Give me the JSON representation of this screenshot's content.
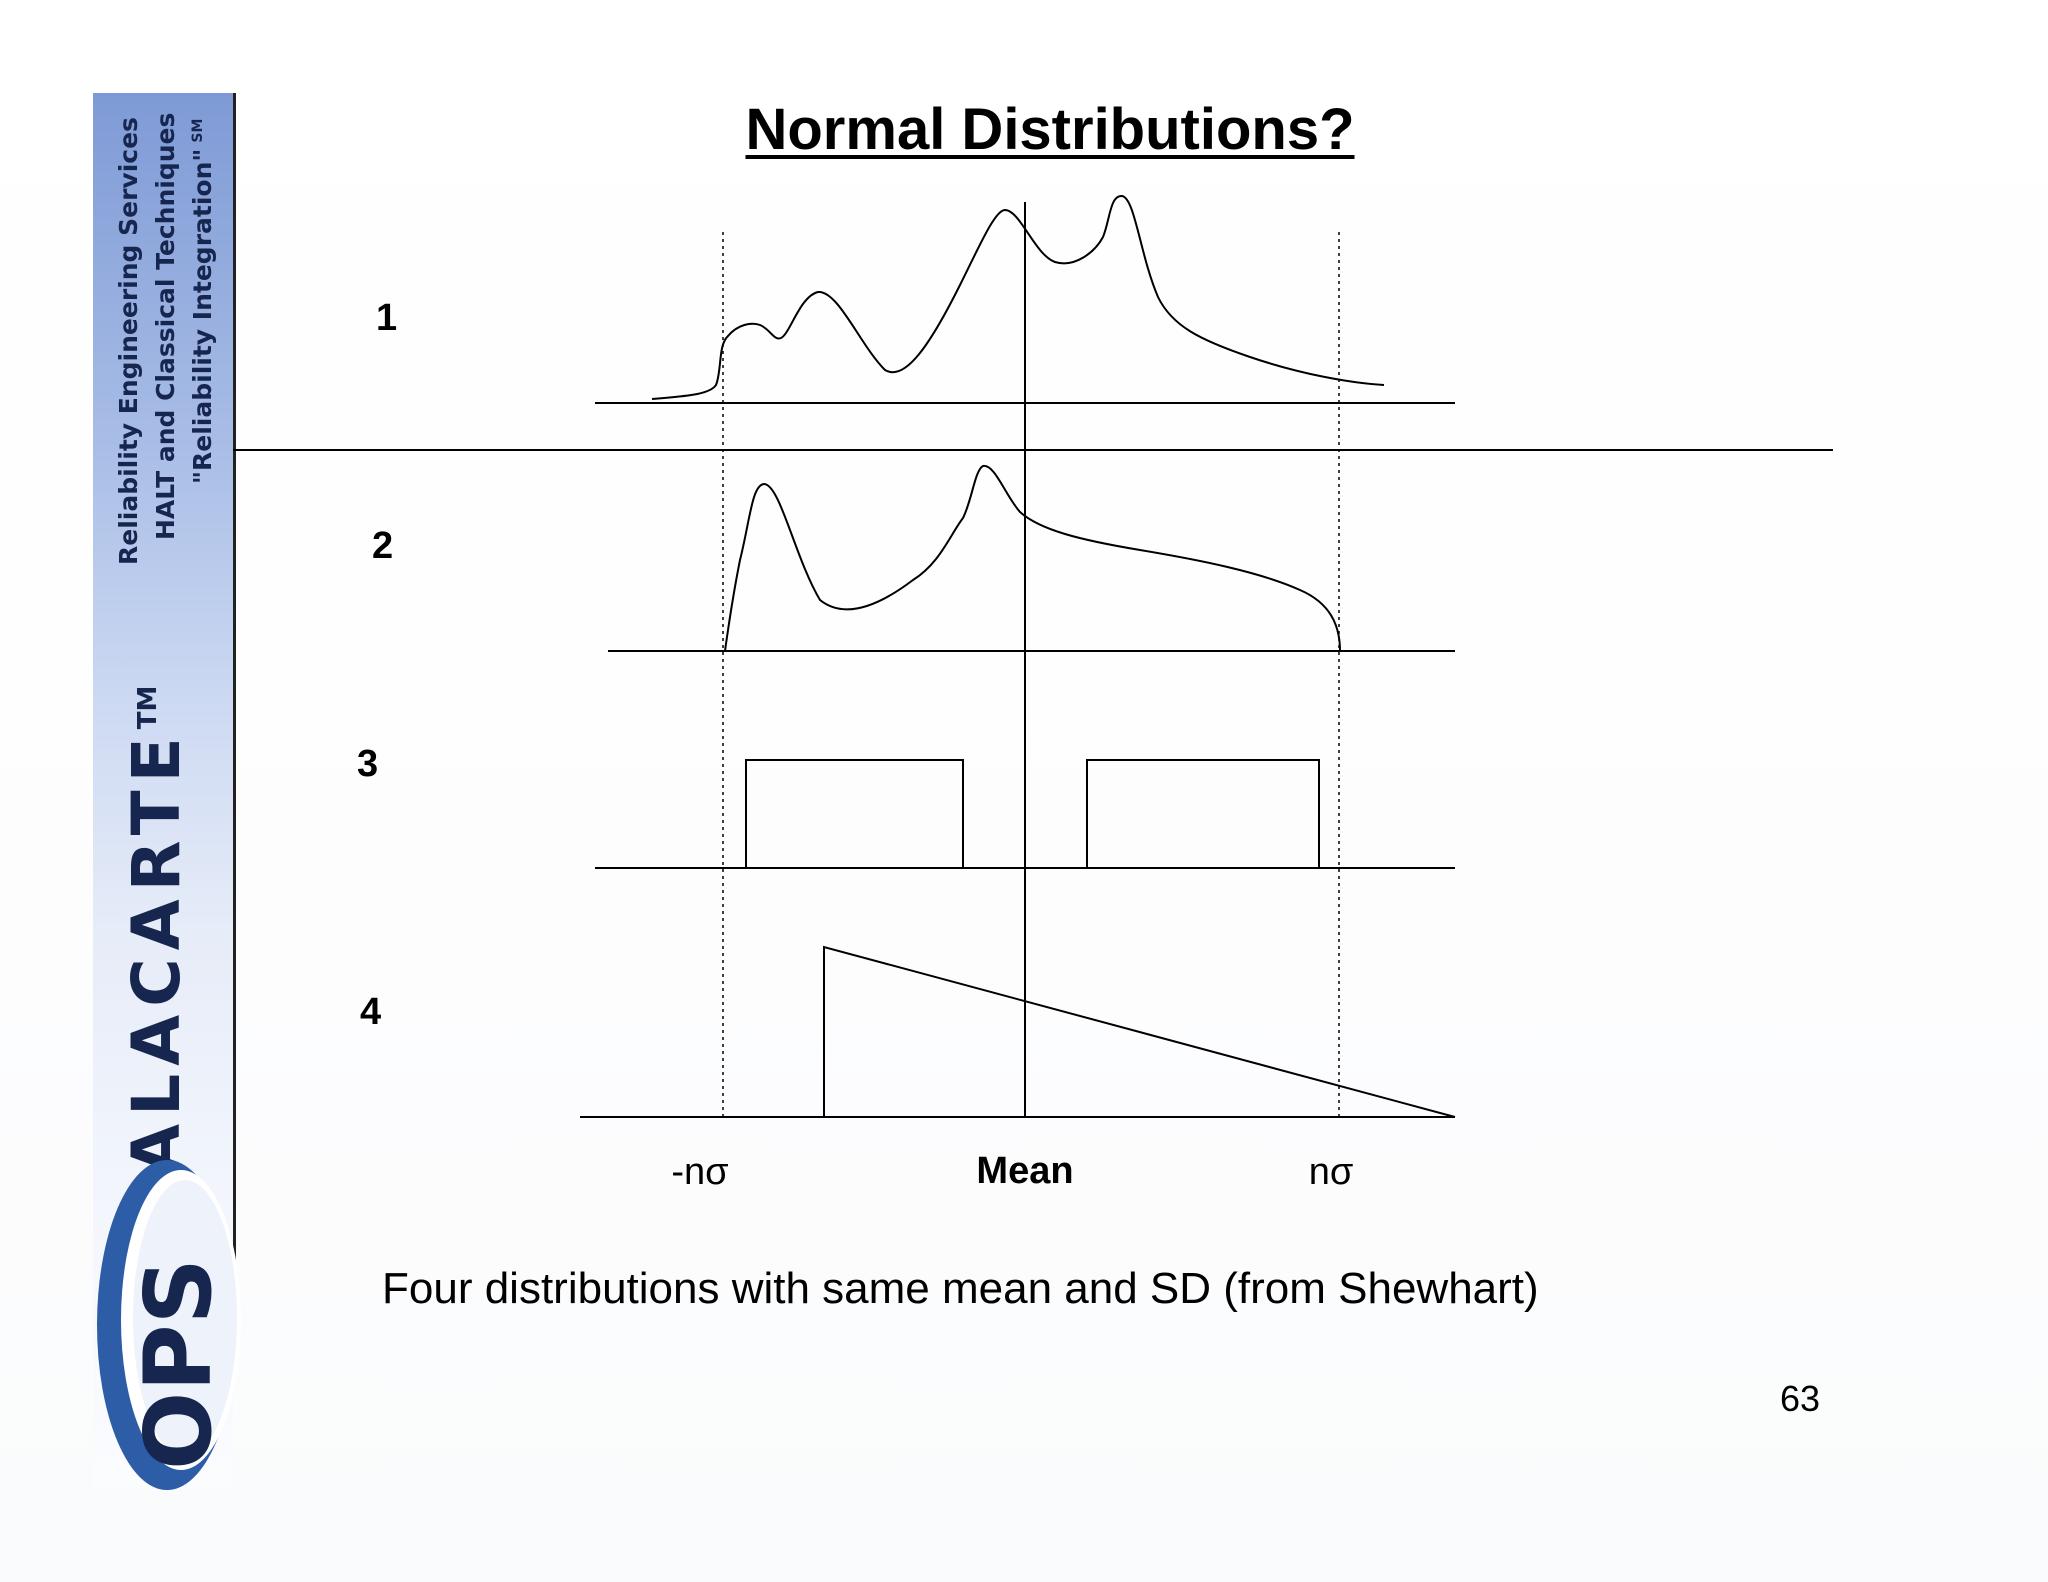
{
  "slide": {
    "title": "Normal Distributions?",
    "caption": "Four distributions with same mean and SD (from Shewhart)",
    "page_number": "63"
  },
  "sidebar": {
    "line1": "Reliability Engineering Services",
    "line2": "HALT and Classical Techniques",
    "line3": "\"Reliability Integration\"",
    "line3_mark": "SM",
    "brand": "ALACARTE",
    "brand_mark": "TM",
    "logo_text": "OPS",
    "colors": {
      "navy": "#16264f",
      "blue": "#2e5da8",
      "light_blue": "#7e9ad6"
    }
  },
  "diagram": {
    "rows": [
      {
        "label": "1",
        "shape": "multi-modal curve"
      },
      {
        "label": "2",
        "shape": "bimodal curve, truncated"
      },
      {
        "label": "3",
        "shape": "two rectangles"
      },
      {
        "label": "4",
        "shape": "right triangle"
      }
    ],
    "x_labels": {
      "left": "-nσ",
      "center": "Mean",
      "right": "nσ"
    }
  }
}
